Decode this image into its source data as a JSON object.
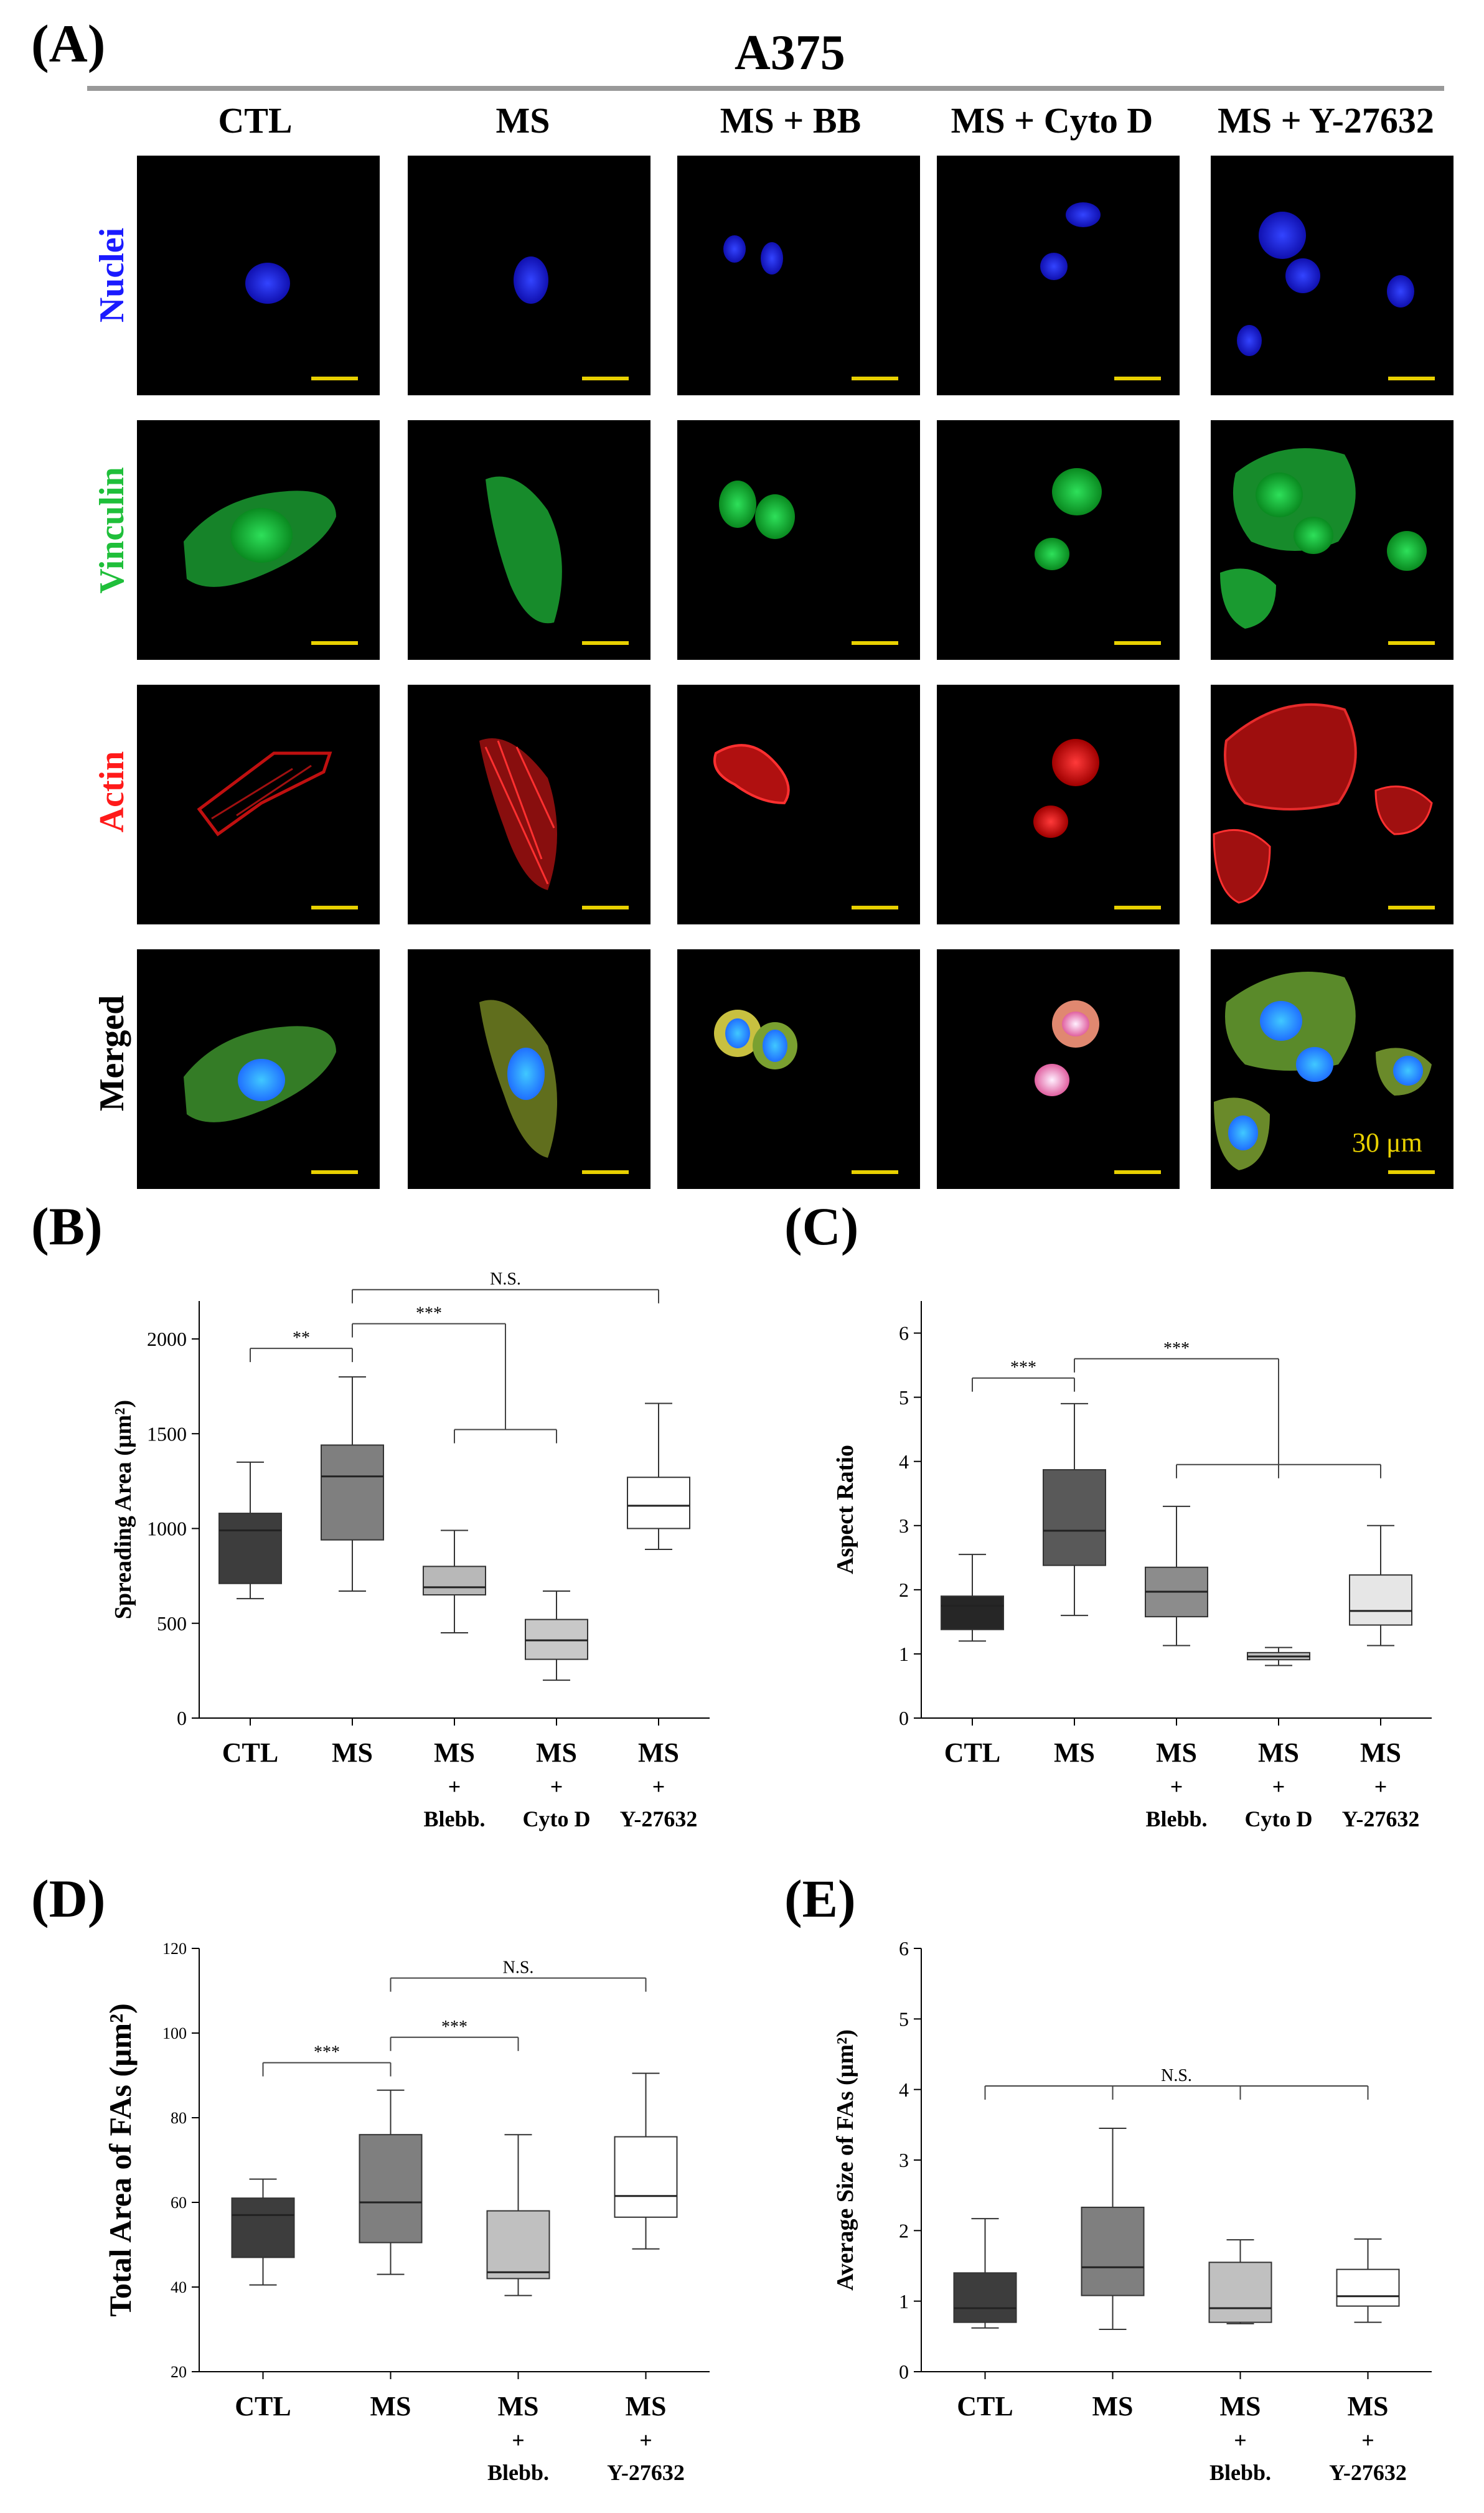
{
  "panel_a": {
    "letter": "(A)",
    "cell_line": "A375",
    "conditions": [
      "CTL",
      "MS",
      "MS + BB",
      "MS + Cyto D",
      "MS + Y-27632"
    ],
    "rows": [
      {
        "label": "Nuclei",
        "color": "#1a1aff"
      },
      {
        "label": "Vinculin",
        "color": "#1fbf3a"
      },
      {
        "label": "Actin",
        "color": "#ff1a1a"
      },
      {
        "label": "Merged",
        "color": "#000000"
      }
    ],
    "scale_text": "30 μm"
  },
  "chart_data": [
    {
      "panel": "(B)",
      "type": "box",
      "ylabel": "Spreading Area (μm²)",
      "ylim": [
        0,
        2200
      ],
      "yticks": [
        0,
        500,
        1000,
        1500,
        2000
      ],
      "categories": [
        [
          "CTL"
        ],
        [
          "MS"
        ],
        [
          "MS",
          "+",
          "Blebb."
        ],
        [
          "MS",
          "+",
          "Cyto D"
        ],
        [
          "MS",
          "+",
          "Y-27632"
        ]
      ],
      "boxes": [
        {
          "min": 630,
          "q1": 710,
          "median": 990,
          "q3": 1080,
          "max": 1350,
          "color": "#3d3d3d"
        },
        {
          "min": 670,
          "q1": 940,
          "median": 1275,
          "q3": 1440,
          "max": 1800,
          "color": "#7f7f7f"
        },
        {
          "min": 450,
          "q1": 650,
          "median": 690,
          "q3": 800,
          "max": 990,
          "color": "#b8b8b8"
        },
        {
          "min": 200,
          "q1": 310,
          "median": 410,
          "q3": 520,
          "max": 670,
          "color": "#c8c8c8"
        },
        {
          "min": 890,
          "q1": 1000,
          "median": 1120,
          "q3": 1270,
          "max": 1660,
          "color": "#ffffff"
        }
      ],
      "annotations": [
        {
          "label": "**",
          "from": 0,
          "to": 1,
          "y": 1950
        },
        {
          "label": "***",
          "from": 1,
          "to_group": [
            2,
            3
          ],
          "y": 2080
        },
        {
          "label": "N.S.",
          "from": 1,
          "to": 4,
          "y": 2260
        }
      ]
    },
    {
      "panel": "(C)",
      "type": "box",
      "ylabel": "Aspect Ratio",
      "ylim": [
        0,
        6.5
      ],
      "yticks": [
        0,
        1,
        2,
        3,
        4,
        5,
        6
      ],
      "categories": [
        [
          "CTL"
        ],
        [
          "MS"
        ],
        [
          "MS",
          "+",
          "Blebb."
        ],
        [
          "MS",
          "+",
          "Cyto D"
        ],
        [
          "MS",
          "+",
          "Y-27632"
        ]
      ],
      "boxes": [
        {
          "min": 1.2,
          "q1": 1.38,
          "median": 1.75,
          "q3": 1.9,
          "max": 2.55,
          "color": "#262626"
        },
        {
          "min": 1.6,
          "q1": 2.38,
          "median": 2.92,
          "q3": 3.87,
          "max": 4.9,
          "color": "#595959"
        },
        {
          "min": 1.13,
          "q1": 1.58,
          "median": 1.97,
          "q3": 2.35,
          "max": 3.3,
          "color": "#8c8c8c"
        },
        {
          "min": 0.82,
          "q1": 0.91,
          "median": 0.96,
          "q3": 1.02,
          "max": 1.1,
          "color": "#bfbfbf"
        },
        {
          "min": 1.13,
          "q1": 1.45,
          "median": 1.67,
          "q3": 2.23,
          "max": 3.0,
          "color": "#e6e6e6"
        }
      ],
      "annotations": [
        {
          "label": "***",
          "from": 0,
          "to": 1,
          "y": 5.3
        },
        {
          "label": "***",
          "from": 1,
          "to_group": [
            2,
            3,
            4
          ],
          "y": 5.6
        }
      ]
    },
    {
      "panel": "(D)",
      "type": "box",
      "ylabel": "Total Area of FAs (μm²)",
      "ylim": [
        20,
        120
      ],
      "yticks": [
        20,
        40,
        60,
        80,
        100,
        120
      ],
      "categories": [
        [
          "CTL"
        ],
        [
          "MS"
        ],
        [
          "MS",
          "+",
          "Blebb."
        ],
        [
          "MS",
          "+",
          "Y-27632"
        ]
      ],
      "boxes": [
        {
          "min": 40.5,
          "q1": 47,
          "median": 57,
          "q3": 61,
          "max": 65.5,
          "color": "#3d3d3d"
        },
        {
          "min": 43,
          "q1": 50.5,
          "median": 60,
          "q3": 76,
          "max": 86.5,
          "color": "#7f7f7f"
        },
        {
          "min": 38,
          "q1": 42,
          "median": 43.5,
          "q3": 58,
          "max": 76,
          "color": "#c0c0c0"
        },
        {
          "min": 49,
          "q1": 56.5,
          "median": 61.5,
          "q3": 75.5,
          "max": 90.5,
          "color": "#ffffff"
        }
      ],
      "annotations": [
        {
          "label": "***",
          "from": 0,
          "to": 1,
          "y": 93
        },
        {
          "label": "***",
          "from": 1,
          "to": 2,
          "y": 99
        },
        {
          "label": "N.S.",
          "from": 1,
          "to": 3,
          "y": 113
        }
      ]
    },
    {
      "panel": "(E)",
      "type": "box",
      "ylabel": "Average Size of FAs (μm²)",
      "ylim": [
        0,
        6
      ],
      "yticks": [
        0,
        1,
        2,
        3,
        4,
        5,
        6
      ],
      "categories": [
        [
          "CTL"
        ],
        [
          "MS"
        ],
        [
          "MS",
          "+",
          "Blebb."
        ],
        [
          "MS",
          "+",
          "Y-27632"
        ]
      ],
      "boxes": [
        {
          "min": 0.62,
          "q1": 0.7,
          "median": 0.9,
          "q3": 1.4,
          "max": 2.17,
          "color": "#3d3d3d"
        },
        {
          "min": 0.6,
          "q1": 1.08,
          "median": 1.48,
          "q3": 2.33,
          "max": 3.45,
          "color": "#7f7f7f"
        },
        {
          "min": 0.68,
          "q1": 0.7,
          "median": 0.9,
          "q3": 1.55,
          "max": 1.87,
          "color": "#c0c0c0"
        },
        {
          "min": 0.7,
          "q1": 0.93,
          "median": 1.07,
          "q3": 1.45,
          "max": 1.88,
          "color": "#ffffff"
        }
      ],
      "annotations": [
        {
          "label": "N.S.",
          "from": 0,
          "to": 3,
          "y": 4.05,
          "all_ticks": true
        }
      ]
    }
  ]
}
